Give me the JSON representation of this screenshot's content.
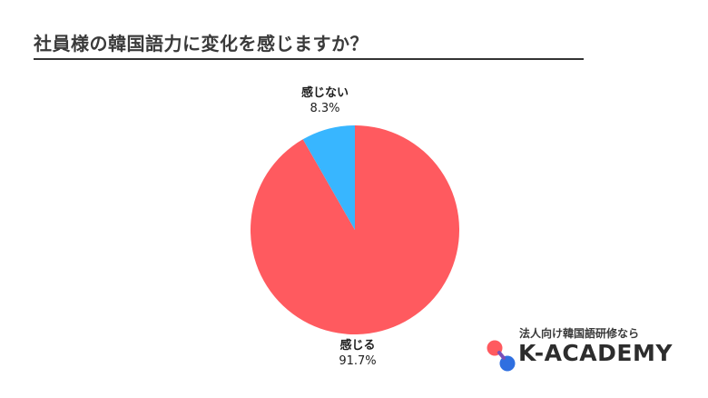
{
  "title": "社員様の韓国語力に変化を感じますか？",
  "chart_data": {
    "type": "pie",
    "title": "社員様の韓国語力に変化を感じますか？",
    "slices": [
      {
        "label": "感じる",
        "value": 91.7,
        "value_label": "91.7%",
        "color": "#ff5a5f"
      },
      {
        "label": "感じない",
        "value": 8.3,
        "value_label": "8.3%",
        "color": "#38b6ff"
      }
    ],
    "start_angle": "12 o'clock",
    "direction": "counter-clockwise",
    "legend": "none"
  },
  "brand": {
    "tagline": "法人向け韓国語研修なら",
    "name": "K-ACADEMY",
    "logo_colors": [
      "#ff5a5f",
      "#2f6fe0"
    ]
  }
}
